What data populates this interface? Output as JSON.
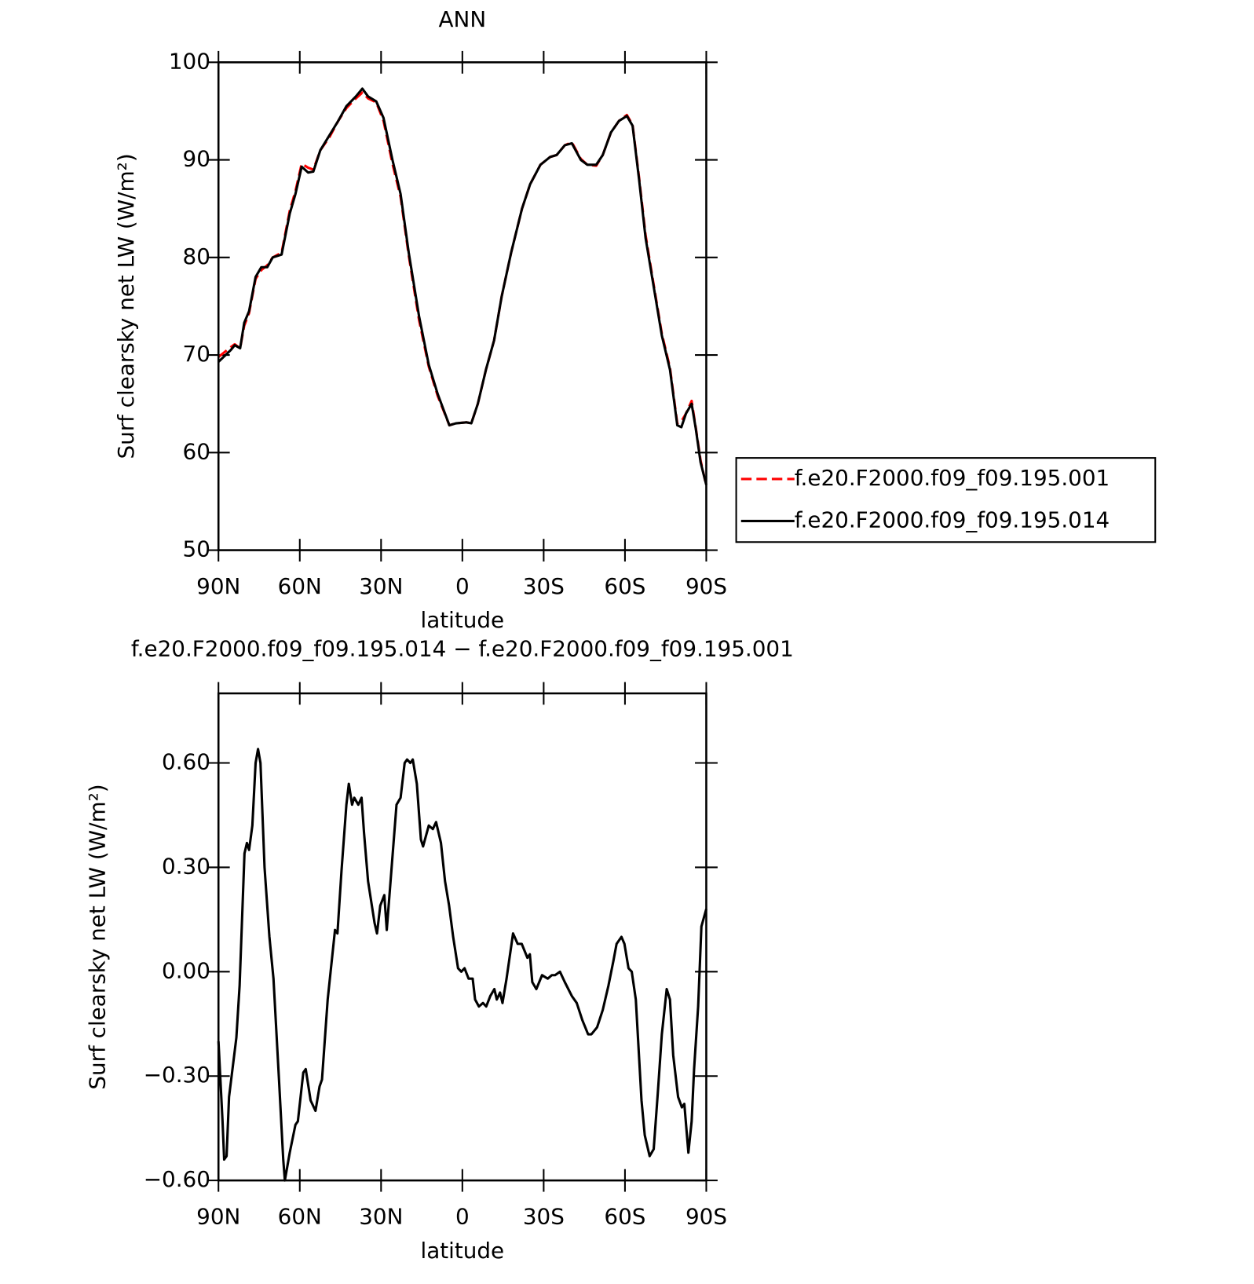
{
  "chart_data": [
    {
      "type": "line",
      "title": "ANN",
      "xlabel": "latitude",
      "ylabel": "Surf clearsky net LW (W/m²)",
      "xlim": [
        90,
        -90
      ],
      "ylim": [
        50,
        100
      ],
      "xticks": [
        {
          "value": 90,
          "label": "90N"
        },
        {
          "value": 60,
          "label": "60N"
        },
        {
          "value": 30,
          "label": "30N"
        },
        0,
        {
          "value": -30,
          "label": "30S"
        },
        {
          "value": -60,
          "label": "60S"
        },
        {
          "value": -90,
          "label": "90S"
        }
      ],
      "yticks": [
        50,
        60,
        70,
        80,
        90,
        100
      ],
      "x": [
        90,
        85.5,
        84,
        82,
        80.5,
        78.7,
        76.3,
        74.2,
        72,
        70,
        66.7,
        63.7,
        61.6,
        59.3,
        56.9,
        55,
        52.4,
        49.1,
        45.8,
        42.8,
        39.3,
        36.9,
        34.8,
        31.8,
        29.1,
        25.8,
        22.8,
        19.8,
        16,
        12.4,
        9.1,
        4.8,
        2.4,
        -1.5,
        -3.3,
        -5.7,
        -8.7,
        -11.7,
        -14.5,
        -18,
        -22,
        -25,
        -28.8,
        -32.4,
        -34.8,
        -37.8,
        -40.4,
        -43.7,
        -46.1,
        -49.4,
        -51.8,
        -54.8,
        -57.8,
        -60.7,
        -62.8,
        -65.2,
        -67.6,
        -70.6,
        -73.6,
        -76.6,
        -79.3,
        -80.8,
        -82.5,
        -84.6,
        -86.1,
        -87.9,
        -90
      ],
      "legend": "right",
      "series": [
        {
          "name": "f.e20.F2000.f09_f09.195.001",
          "color": "#ff0000",
          "dash": true,
          "values": [
            69.8,
            70.8,
            71.1,
            70.7,
            73.0,
            74.3,
            77.8,
            78.7,
            79.2,
            80.0,
            80.5,
            84.8,
            86.8,
            89.6,
            89.2,
            89.0,
            91.0,
            92.3,
            94.0,
            95.3,
            96.3,
            96.9,
            96.3,
            95.9,
            94.0,
            89.6,
            86.2,
            80.2,
            73.6,
            68.8,
            65.8,
            62.8,
            63.0,
            63.1,
            63.0,
            65.0,
            68.5,
            71.5,
            76.0,
            80.5,
            85.0,
            87.5,
            89.5,
            90.3,
            90.5,
            91.5,
            91.8,
            90.1,
            89.5,
            89.4,
            90.5,
            92.8,
            94.0,
            94.6,
            93.6,
            88.2,
            82.3,
            77.2,
            72.2,
            68.7,
            63.0,
            63.2,
            64.0,
            65.3,
            62.6,
            59.2,
            56.6
          ]
        },
        {
          "name": "f.e20.F2000.f09_f09.195.014",
          "color": "#000000",
          "dash": false,
          "values": [
            69.3,
            70.5,
            71.0,
            70.7,
            73.3,
            74.5,
            78.0,
            79.0,
            79.0,
            80.0,
            80.3,
            84.5,
            86.5,
            89.3,
            88.7,
            88.8,
            91.0,
            92.5,
            94.0,
            95.5,
            96.5,
            97.3,
            96.5,
            96.0,
            94.3,
            90.0,
            86.5,
            80.5,
            74.0,
            69.0,
            66.0,
            62.8,
            63.0,
            63.1,
            63.0,
            65.0,
            68.5,
            71.5,
            76.0,
            80.5,
            85.0,
            87.5,
            89.5,
            90.3,
            90.5,
            91.5,
            91.7,
            90.0,
            89.5,
            89.5,
            90.5,
            92.8,
            94.0,
            94.5,
            93.5,
            88.0,
            82.0,
            77.0,
            72.0,
            68.5,
            62.8,
            62.6,
            64.0,
            65.0,
            62.5,
            59.0,
            56.7
          ]
        }
      ]
    },
    {
      "type": "line",
      "title": "f.e20.F2000.f09_f09.195.014 − f.e20.F2000.f09_f09.195.001",
      "xlabel": "latitude",
      "ylabel": "Surf clearsky net LW (W/m²)",
      "xlim": [
        90,
        -90
      ],
      "ylim": [
        -0.6,
        0.8
      ],
      "xticks": [
        {
          "value": 90,
          "label": "90N"
        },
        {
          "value": 60,
          "label": "60N"
        },
        {
          "value": 30,
          "label": "30N"
        },
        0,
        {
          "value": -30,
          "label": "30S"
        },
        {
          "value": -60,
          "label": "60S"
        },
        {
          "value": -90,
          "label": "90S"
        }
      ],
      "yticks": [
        {
          "value": -0.6,
          "label": "−0.60"
        },
        {
          "value": -0.3,
          "label": "−0.30"
        },
        {
          "value": 0,
          "label": "0.00"
        },
        {
          "value": 0.3,
          "label": "0.30"
        },
        {
          "value": 0.6,
          "label": "0.60"
        }
      ],
      "x": [
        90,
        88.5,
        87.9,
        87.0,
        86.1,
        83.4,
        82.2,
        80.4,
        79.5,
        78.7,
        77.5,
        76.3,
        75.4,
        74.5,
        73.0,
        71.2,
        69.7,
        67.6,
        66.1,
        65.5,
        63.7,
        61.6,
        60.7,
        58.7,
        57.8,
        56.0,
        54.2,
        52.7,
        51.8,
        49.7,
        47.0,
        46.1,
        44.6,
        42.8,
        41.9,
        40.7,
        39.9,
        38.4,
        37.2,
        36.3,
        34.8,
        33.6,
        32.4,
        31.5,
        30.3,
        28.8,
        27.9,
        25.8,
        24.3,
        22.8,
        21.3,
        20.4,
        19.2,
        18.3,
        16.8,
        15.3,
        14.5,
        12.4,
        10.9,
        9.7,
        7.9,
        6.4,
        4.9,
        3.4,
        1.6,
        0.4,
        -0.8,
        -2.3,
        -3.8,
        -4.7,
        -6.1,
        -7.6,
        -8.8,
        -10.3,
        -11.8,
        -12.7,
        -13.9,
        -14.8,
        -16.3,
        -18.7,
        -20.4,
        -21.9,
        -24.0,
        -24.9,
        -25.8,
        -27.3,
        -29.4,
        -31.5,
        -33.0,
        -34.2,
        -36.0,
        -37.8,
        -40.4,
        -42.2,
        -44.3,
        -46.4,
        -47.6,
        -49.7,
        -51.8,
        -53.9,
        -55.7,
        -56.9,
        -58.7,
        -59.8,
        -61.3,
        -62.5,
        -64.0,
        -66.1,
        -67.3,
        -69.1,
        -70.6,
        -72.1,
        -73.6,
        -75.4,
        -76.6,
        -77.8,
        -79.6,
        -81.0,
        -81.9,
        -83.4,
        -84.6,
        -85.5,
        -87.0,
        -88.2,
        -90
      ],
      "color": "#000000",
      "values": [
        -0.2,
        -0.43,
        -0.54,
        -0.53,
        -0.36,
        -0.19,
        -0.04,
        0.34,
        0.37,
        0.35,
        0.42,
        0.6,
        0.64,
        0.6,
        0.3,
        0.1,
        -0.02,
        -0.32,
        -0.54,
        -0.6,
        -0.52,
        -0.44,
        -0.43,
        -0.29,
        -0.28,
        -0.37,
        -0.4,
        -0.33,
        -0.31,
        -0.08,
        0.12,
        0.11,
        0.29,
        0.48,
        0.54,
        0.48,
        0.5,
        0.48,
        0.5,
        0.4,
        0.26,
        0.2,
        0.14,
        0.11,
        0.19,
        0.22,
        0.12,
        0.33,
        0.48,
        0.5,
        0.6,
        0.61,
        0.6,
        0.61,
        0.54,
        0.38,
        0.36,
        0.42,
        0.41,
        0.43,
        0.37,
        0.26,
        0.19,
        0.1,
        0.01,
        0.0,
        0.01,
        -0.02,
        -0.02,
        -0.08,
        -0.1,
        -0.09,
        -0.1,
        -0.07,
        -0.05,
        -0.08,
        -0.06,
        -0.09,
        -0.02,
        0.11,
        0.08,
        0.08,
        0.04,
        0.05,
        -0.03,
        -0.05,
        -0.01,
        -0.02,
        -0.01,
        -0.01,
        0.0,
        -0.03,
        -0.07,
        -0.09,
        -0.14,
        -0.18,
        -0.18,
        -0.16,
        -0.11,
        -0.04,
        0.03,
        0.08,
        0.1,
        0.08,
        0.01,
        0.0,
        -0.08,
        -0.37,
        -0.47,
        -0.53,
        -0.51,
        -0.35,
        -0.18,
        -0.05,
        -0.08,
        -0.24,
        -0.36,
        -0.39,
        -0.38,
        -0.52,
        -0.43,
        -0.28,
        -0.1,
        0.13,
        0.18
      ]
    }
  ]
}
